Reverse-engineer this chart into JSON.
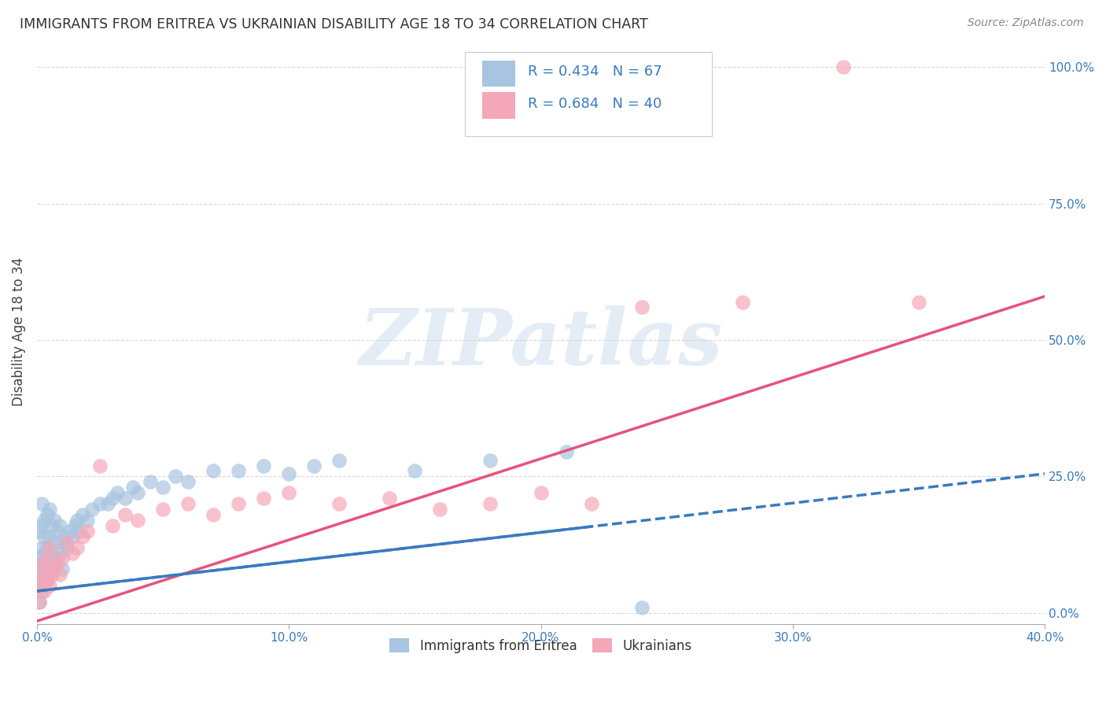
{
  "title": "IMMIGRANTS FROM ERITREA VS UKRAINIAN DISABILITY AGE 18 TO 34 CORRELATION CHART",
  "source": "Source: ZipAtlas.com",
  "ylabel": "Disability Age 18 to 34",
  "xlim": [
    0.0,
    0.4
  ],
  "ylim": [
    -0.02,
    1.05
  ],
  "xticks": [
    0.0,
    0.1,
    0.2,
    0.3,
    0.4
  ],
  "xtick_labels": [
    "0.0%",
    "10.0%",
    "20.0%",
    "30.0%",
    "40.0%"
  ],
  "ytick_labels_right": [
    "0.0%",
    "25.0%",
    "50.0%",
    "75.0%",
    "100.0%"
  ],
  "ytick_positions_right": [
    0.0,
    0.25,
    0.5,
    0.75,
    1.0
  ],
  "background_color": "#ffffff",
  "grid_color": "#d8d8d8",
  "eritrea_color": "#a8c4e0",
  "ukrainian_color": "#f4a7b9",
  "eritrea_line_color": "#3a7abf",
  "ukrainian_line_color": "#e8527a",
  "eritrea_R": 0.434,
  "eritrea_N": 67,
  "ukrainian_R": 0.684,
  "ukrainian_N": 40,
  "legend_text_color": "#3a7abf",
  "watermark": "ZIPatlas",
  "eritrea_scatter_x": [
    0.001,
    0.001,
    0.001,
    0.001,
    0.001,
    0.002,
    0.002,
    0.002,
    0.002,
    0.002,
    0.002,
    0.003,
    0.003,
    0.003,
    0.003,
    0.003,
    0.004,
    0.004,
    0.004,
    0.004,
    0.005,
    0.005,
    0.005,
    0.005,
    0.006,
    0.006,
    0.006,
    0.007,
    0.007,
    0.007,
    0.008,
    0.008,
    0.009,
    0.009,
    0.01,
    0.01,
    0.011,
    0.012,
    0.013,
    0.014,
    0.015,
    0.016,
    0.017,
    0.018,
    0.02,
    0.022,
    0.025,
    0.028,
    0.03,
    0.032,
    0.035,
    0.038,
    0.04,
    0.045,
    0.05,
    0.055,
    0.06,
    0.07,
    0.08,
    0.09,
    0.1,
    0.11,
    0.12,
    0.15,
    0.18,
    0.21,
    0.24
  ],
  "eritrea_scatter_y": [
    0.02,
    0.05,
    0.08,
    0.1,
    0.15,
    0.04,
    0.07,
    0.09,
    0.12,
    0.16,
    0.2,
    0.05,
    0.08,
    0.11,
    0.14,
    0.17,
    0.06,
    0.09,
    0.12,
    0.18,
    0.07,
    0.1,
    0.14,
    0.19,
    0.08,
    0.11,
    0.16,
    0.09,
    0.13,
    0.17,
    0.1,
    0.15,
    0.11,
    0.16,
    0.08,
    0.13,
    0.14,
    0.12,
    0.15,
    0.14,
    0.16,
    0.17,
    0.15,
    0.18,
    0.17,
    0.19,
    0.2,
    0.2,
    0.21,
    0.22,
    0.21,
    0.23,
    0.22,
    0.24,
    0.23,
    0.25,
    0.24,
    0.26,
    0.26,
    0.27,
    0.255,
    0.27,
    0.28,
    0.26,
    0.28,
    0.295,
    0.01
  ],
  "ukrainian_scatter_x": [
    0.001,
    0.001,
    0.002,
    0.002,
    0.003,
    0.003,
    0.004,
    0.004,
    0.005,
    0.005,
    0.006,
    0.007,
    0.008,
    0.009,
    0.01,
    0.012,
    0.014,
    0.016,
    0.018,
    0.02,
    0.025,
    0.03,
    0.035,
    0.04,
    0.05,
    0.06,
    0.07,
    0.08,
    0.09,
    0.1,
    0.12,
    0.14,
    0.16,
    0.18,
    0.2,
    0.22,
    0.24,
    0.28,
    0.32,
    0.35
  ],
  "ukrainian_scatter_y": [
    0.02,
    0.06,
    0.05,
    0.09,
    0.04,
    0.08,
    0.06,
    0.1,
    0.05,
    0.12,
    0.07,
    0.08,
    0.09,
    0.07,
    0.1,
    0.13,
    0.11,
    0.12,
    0.14,
    0.15,
    0.27,
    0.16,
    0.18,
    0.17,
    0.19,
    0.2,
    0.18,
    0.2,
    0.21,
    0.22,
    0.2,
    0.21,
    0.19,
    0.2,
    0.22,
    0.2,
    0.56,
    0.57,
    1.0,
    0.57
  ],
  "eritrea_line_x0": 0.0,
  "eritrea_line_y0": 0.04,
  "eritrea_line_x1": 0.4,
  "eritrea_line_y1": 0.255,
  "ukrainian_line_x0": 0.0,
  "ukrainian_line_y0": -0.015,
  "ukrainian_line_x1": 0.4,
  "ukrainian_line_y1": 0.58
}
